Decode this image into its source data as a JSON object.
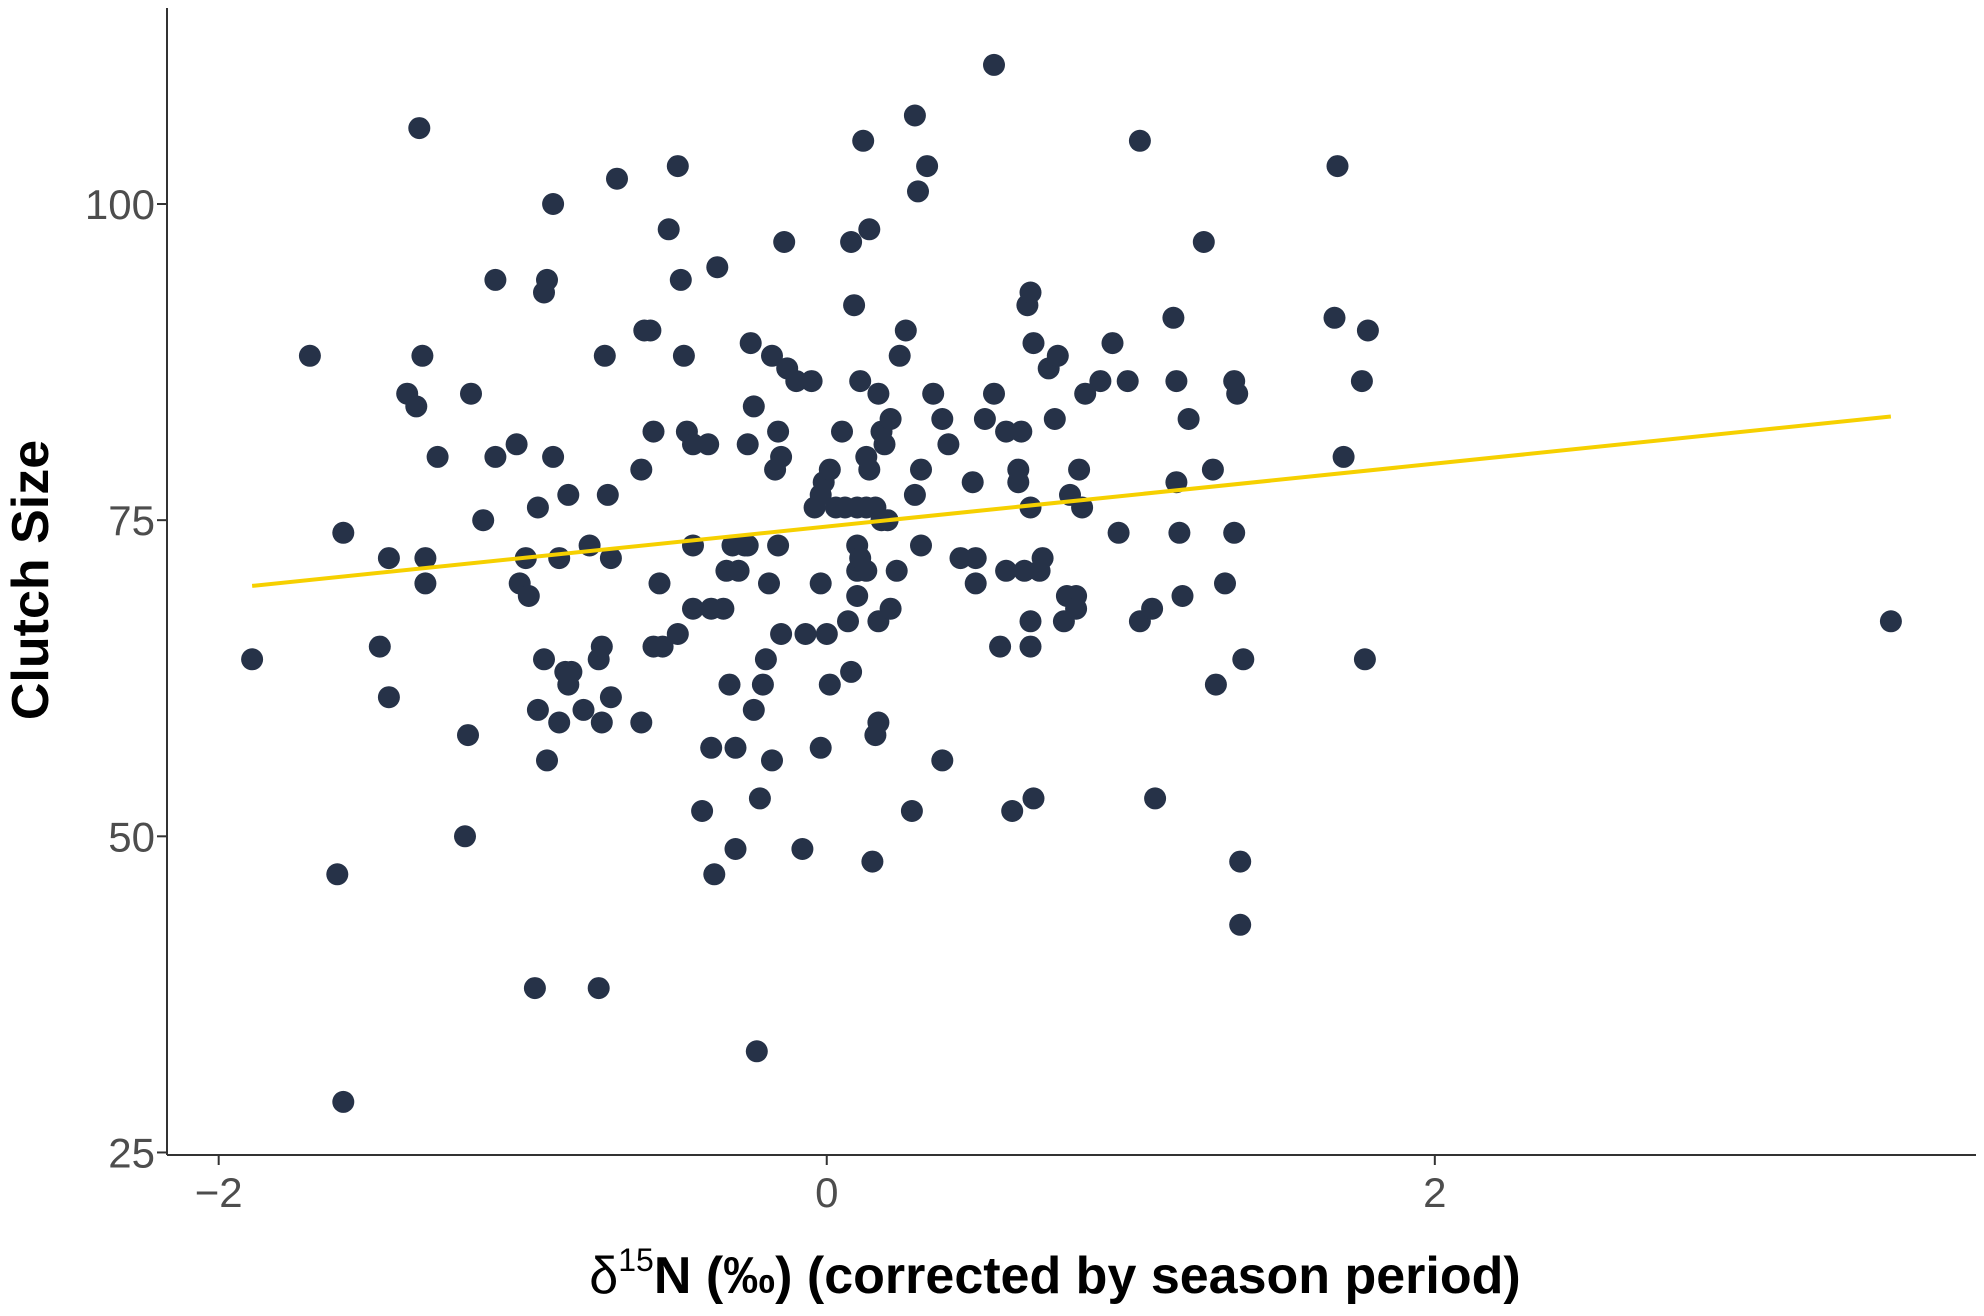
{
  "chart_data": {
    "type": "scatter",
    "xlabel_prefix": "δ",
    "xlabel_sup": "15",
    "xlabel_rest": "N (‰) (corrected by season period)",
    "ylabel": "Clutch Size",
    "xlim": [
      -2.17,
      3.78
    ],
    "ylim": [
      24.8,
      115.5
    ],
    "xticks": [
      -2,
      0,
      2
    ],
    "xtick_labels": [
      "−2",
      "0",
      "2"
    ],
    "yticks": [
      25,
      50,
      75,
      100
    ],
    "ytick_labels": [
      "25",
      "50",
      "75",
      "100"
    ],
    "grid": false,
    "legend": "none",
    "point_color": "#263248",
    "line_color": "#f6d000",
    "trend_line": {
      "x": [
        -1.89,
        3.5
      ],
      "y": [
        69.8,
        83.2
      ]
    },
    "points": [
      [
        -1.89,
        64
      ],
      [
        -1.7,
        88
      ],
      [
        -1.61,
        47
      ],
      [
        -1.59,
        74
      ],
      [
        -1.59,
        29
      ],
      [
        -1.47,
        65
      ],
      [
        -1.44,
        72
      ],
      [
        -1.44,
        61
      ],
      [
        -1.38,
        85
      ],
      [
        -1.35,
        84
      ],
      [
        -1.34,
        106
      ],
      [
        -1.33,
        88
      ],
      [
        -1.32,
        72
      ],
      [
        -1.32,
        70
      ],
      [
        -1.28,
        80
      ],
      [
        -1.19,
        50
      ],
      [
        -1.18,
        58
      ],
      [
        -1.17,
        85
      ],
      [
        -1.13,
        75
      ],
      [
        -1.09,
        80
      ],
      [
        -1.09,
        94
      ],
      [
        -1.02,
        81
      ],
      [
        -1.01,
        70
      ],
      [
        -0.99,
        72
      ],
      [
        -0.98,
        69
      ],
      [
        -0.96,
        38
      ],
      [
        -0.95,
        60
      ],
      [
        -0.95,
        76
      ],
      [
        -0.93,
        64
      ],
      [
        -0.93,
        93
      ],
      [
        -0.92,
        94
      ],
      [
        -0.92,
        56
      ],
      [
        -0.9,
        100
      ],
      [
        -0.9,
        80
      ],
      [
        -0.88,
        59
      ],
      [
        -0.88,
        72
      ],
      [
        -0.86,
        63
      ],
      [
        -0.85,
        77
      ],
      [
        -0.85,
        62
      ],
      [
        -0.84,
        63
      ],
      [
        -0.8,
        60
      ],
      [
        -0.78,
        73
      ],
      [
        -0.75,
        38
      ],
      [
        -0.75,
        64
      ],
      [
        -0.74,
        59
      ],
      [
        -0.74,
        65
      ],
      [
        -0.73,
        88
      ],
      [
        -0.72,
        77
      ],
      [
        -0.71,
        72
      ],
      [
        -0.71,
        61
      ],
      [
        -0.69,
        102
      ],
      [
        -0.61,
        59
      ],
      [
        -0.61,
        79
      ],
      [
        -0.6,
        90
      ],
      [
        -0.58,
        90
      ],
      [
        -0.57,
        65
      ],
      [
        -0.57,
        82
      ],
      [
        -0.55,
        70
      ],
      [
        -0.54,
        65
      ],
      [
        -0.52,
        98
      ],
      [
        -0.49,
        103
      ],
      [
        -0.49,
        66
      ],
      [
        -0.48,
        94
      ],
      [
        -0.47,
        88
      ],
      [
        -0.46,
        82
      ],
      [
        -0.44,
        73
      ],
      [
        -0.44,
        81
      ],
      [
        -0.44,
        68
      ],
      [
        -0.41,
        52
      ],
      [
        -0.39,
        81
      ],
      [
        -0.38,
        57
      ],
      [
        -0.38,
        68
      ],
      [
        -0.37,
        47
      ],
      [
        -0.36,
        95
      ],
      [
        -0.34,
        68
      ],
      [
        -0.33,
        71
      ],
      [
        -0.32,
        62
      ],
      [
        -0.31,
        73
      ],
      [
        -0.3,
        57
      ],
      [
        -0.3,
        49
      ],
      [
        -0.29,
        71
      ],
      [
        -0.27,
        73
      ],
      [
        -0.26,
        81
      ],
      [
        -0.26,
        73
      ],
      [
        -0.25,
        89
      ],
      [
        -0.24,
        84
      ],
      [
        -0.24,
        60
      ],
      [
        -0.23,
        33
      ],
      [
        -0.22,
        53
      ],
      [
        -0.21,
        62
      ],
      [
        -0.2,
        64
      ],
      [
        -0.19,
        70
      ],
      [
        -0.18,
        88
      ],
      [
        -0.18,
        56
      ],
      [
        -0.17,
        79
      ],
      [
        -0.16,
        73
      ],
      [
        -0.16,
        82
      ],
      [
        -0.15,
        80
      ],
      [
        -0.15,
        66
      ],
      [
        -0.14,
        97
      ],
      [
        -0.13,
        87
      ],
      [
        -0.1,
        86
      ],
      [
        -0.08,
        49
      ],
      [
        -0.07,
        66
      ],
      [
        -0.05,
        86
      ],
      [
        -0.04,
        76
      ],
      [
        -0.02,
        57
      ],
      [
        -0.02,
        77
      ],
      [
        -0.02,
        70
      ],
      [
        -0.01,
        78
      ],
      [
        0,
        66
      ],
      [
        0.01,
        79
      ],
      [
        0.01,
        62
      ],
      [
        0.03,
        76
      ],
      [
        0.05,
        82
      ],
      [
        0.06,
        76
      ],
      [
        0.07,
        67
      ],
      [
        0.08,
        97
      ],
      [
        0.08,
        63
      ],
      [
        0.09,
        92
      ],
      [
        0.1,
        76
      ],
      [
        0.1,
        73
      ],
      [
        0.1,
        71
      ],
      [
        0.1,
        69
      ],
      [
        0.11,
        86
      ],
      [
        0.11,
        72
      ],
      [
        0.12,
        105
      ],
      [
        0.13,
        71
      ],
      [
        0.13,
        76
      ],
      [
        0.13,
        80
      ],
      [
        0.14,
        98
      ],
      [
        0.14,
        79
      ],
      [
        0.15,
        48
      ],
      [
        0.16,
        76
      ],
      [
        0.16,
        58
      ],
      [
        0.17,
        85
      ],
      [
        0.17,
        59
      ],
      [
        0.17,
        67
      ],
      [
        0.18,
        82
      ],
      [
        0.18,
        75
      ],
      [
        0.19,
        81
      ],
      [
        0.2,
        75
      ],
      [
        0.21,
        68
      ],
      [
        0.21,
        83
      ],
      [
        0.23,
        71
      ],
      [
        0.24,
        88
      ],
      [
        0.26,
        90
      ],
      [
        0.28,
        52
      ],
      [
        0.29,
        107
      ],
      [
        0.29,
        77
      ],
      [
        0.3,
        101
      ],
      [
        0.31,
        73
      ],
      [
        0.31,
        79
      ],
      [
        0.33,
        103
      ],
      [
        0.35,
        85
      ],
      [
        0.38,
        83
      ],
      [
        0.38,
        56
      ],
      [
        0.4,
        81
      ],
      [
        0.44,
        72
      ],
      [
        0.48,
        78
      ],
      [
        0.49,
        70
      ],
      [
        0.49,
        72
      ],
      [
        0.52,
        83
      ],
      [
        0.55,
        111
      ],
      [
        0.55,
        85
      ],
      [
        0.57,
        65
      ],
      [
        0.59,
        82
      ],
      [
        0.59,
        71
      ],
      [
        0.61,
        52
      ],
      [
        0.63,
        79
      ],
      [
        0.63,
        78
      ],
      [
        0.64,
        82
      ],
      [
        0.65,
        71
      ],
      [
        0.66,
        92
      ],
      [
        0.67,
        93
      ],
      [
        0.67,
        76
      ],
      [
        0.67,
        67
      ],
      [
        0.67,
        65
      ],
      [
        0.68,
        89
      ],
      [
        0.68,
        53
      ],
      [
        0.7,
        71
      ],
      [
        0.71,
        72
      ],
      [
        0.73,
        87
      ],
      [
        0.75,
        83
      ],
      [
        0.76,
        88
      ],
      [
        0.78,
        67
      ],
      [
        0.79,
        69
      ],
      [
        0.8,
        77
      ],
      [
        0.82,
        69
      ],
      [
        0.82,
        68
      ],
      [
        0.83,
        79
      ],
      [
        0.84,
        76
      ],
      [
        0.85,
        85
      ],
      [
        0.9,
        86
      ],
      [
        0.94,
        89
      ],
      [
        0.96,
        74
      ],
      [
        0.99,
        86
      ],
      [
        1.03,
        105
      ],
      [
        1.03,
        67
      ],
      [
        1.07,
        68
      ],
      [
        1.08,
        53
      ],
      [
        1.24,
        97
      ],
      [
        1.14,
        91
      ],
      [
        1.15,
        78
      ],
      [
        1.15,
        86
      ],
      [
        1.16,
        74
      ],
      [
        1.17,
        69
      ],
      [
        1.19,
        83
      ],
      [
        1.27,
        79
      ],
      [
        1.28,
        62
      ],
      [
        1.31,
        70
      ],
      [
        1.34,
        86
      ],
      [
        1.34,
        74
      ],
      [
        1.35,
        85
      ],
      [
        1.36,
        48
      ],
      [
        1.36,
        43
      ],
      [
        1.37,
        64
      ],
      [
        1.67,
        91
      ],
      [
        1.68,
        103
      ],
      [
        1.7,
        80
      ],
      [
        1.76,
        86
      ],
      [
        1.77,
        64
      ],
      [
        1.78,
        90
      ],
      [
        3.5,
        67
      ]
    ]
  }
}
